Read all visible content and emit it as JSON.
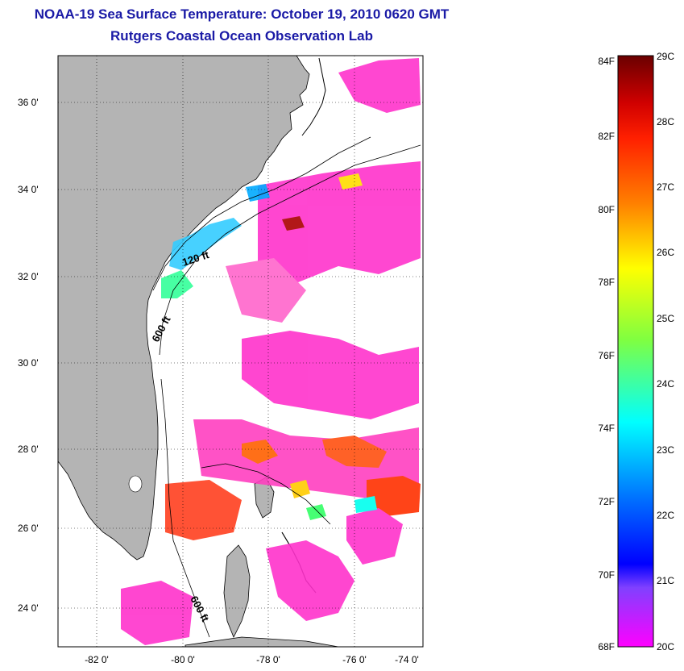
{
  "header": {
    "title": "NOAA-19 Sea Surface Temperature:  October 19, 2010 0620 GMT",
    "subtitle": "Rutgers Coastal Ocean Observation Lab"
  },
  "map": {
    "lat_labels": [
      "36 0'",
      "34 0'",
      "32 0'",
      "30 0'",
      "28 0'",
      "26 0'",
      "24 0'"
    ],
    "lon_labels": [
      "-82 0'",
      "-80 0'",
      "-78 0'",
      "-76 0'",
      "-74 0'"
    ],
    "contours": [
      "120 ft",
      "600 ft",
      "600 ft"
    ],
    "colors": {
      "land": "#b4b4b4",
      "ocean_nodata": "#ffffff",
      "frame": "#000000"
    }
  },
  "colorbar": {
    "fahrenheit": [
      "84F",
      "82F",
      "80F",
      "78F",
      "76F",
      "74F",
      "72F",
      "70F",
      "68F"
    ],
    "celsius": [
      "29C",
      "28C",
      "27C",
      "26C",
      "25C",
      "24C",
      "23C",
      "22C",
      "21C",
      "20C"
    ],
    "gradient_colors_top_to_bottom": [
      "#7a0000",
      "#ff0000",
      "#ff8000",
      "#ffff00",
      "#80ff00",
      "#00ffff",
      "#0080ff",
      "#0000ff",
      "#8000ff",
      "#ff00ff"
    ]
  }
}
